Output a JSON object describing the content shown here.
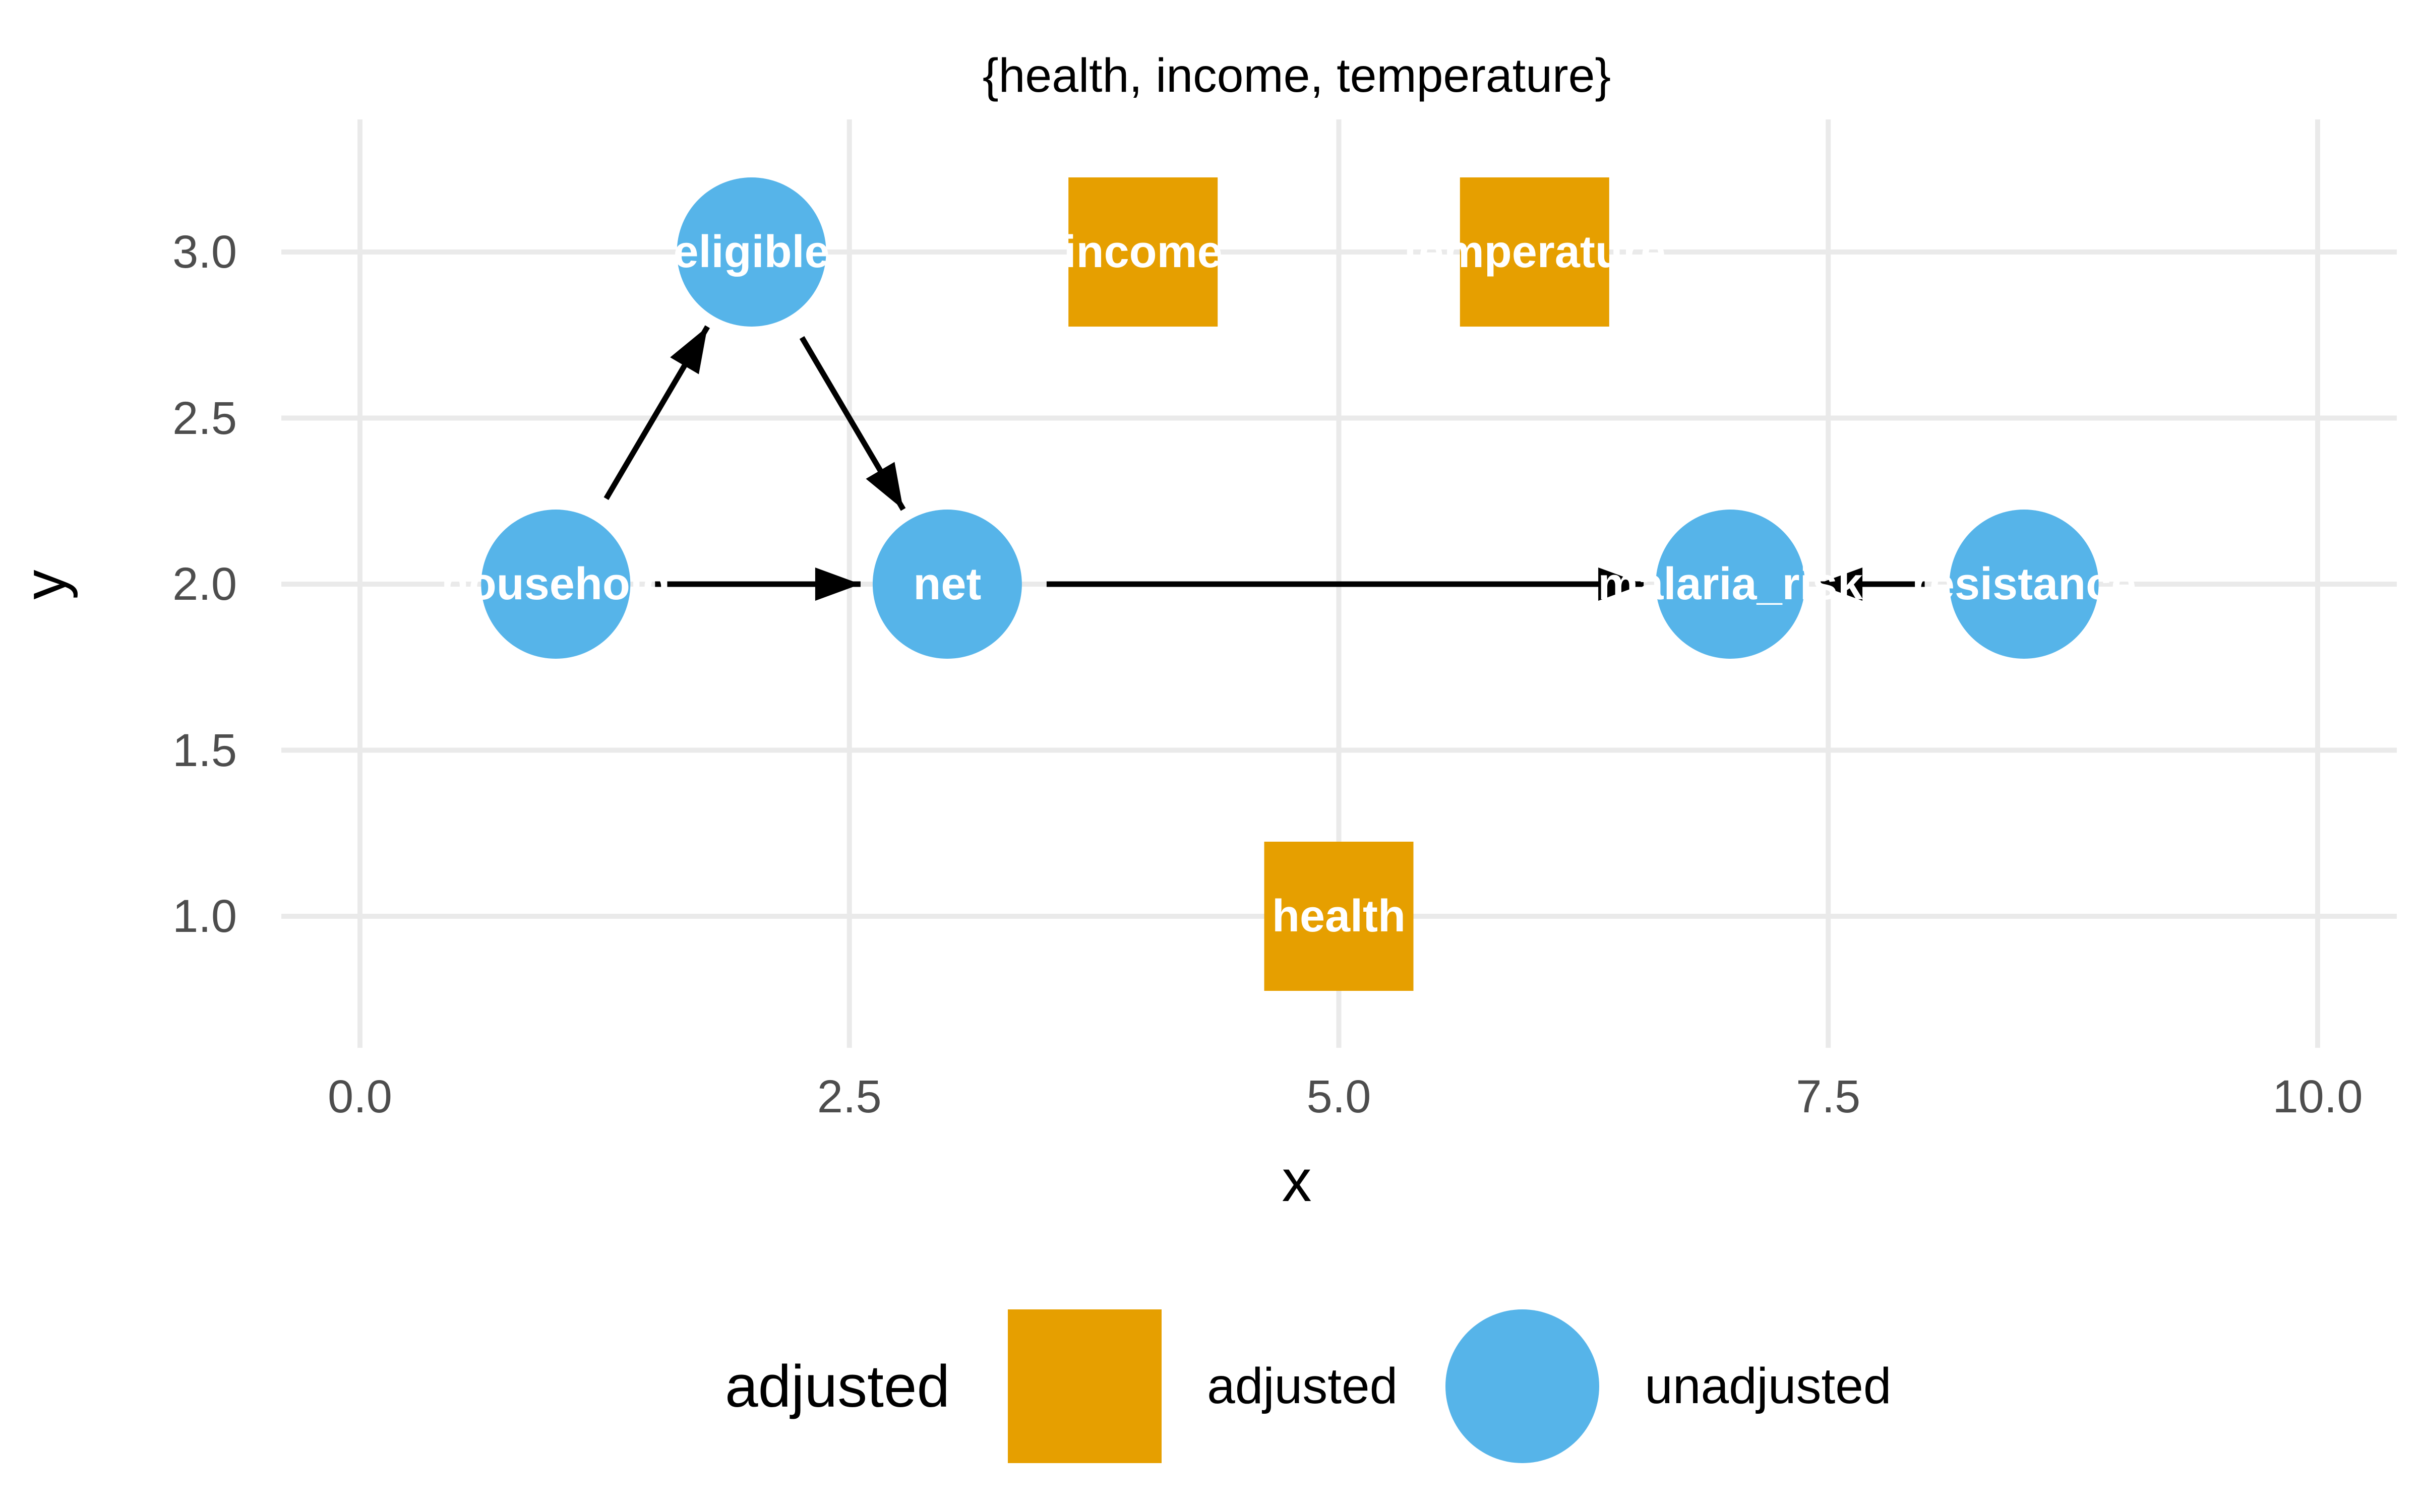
{
  "title": "{health, income, temperature}",
  "axes": {
    "x": {
      "label": "x",
      "tick_labels": [
        "0.0",
        "2.5",
        "5.0",
        "7.5",
        "10.0"
      ],
      "tick_values": [
        0,
        2.5,
        5,
        7.5,
        10
      ]
    },
    "y": {
      "label": "y",
      "tick_labels": [
        "1.0",
        "1.5",
        "2.0",
        "2.5",
        "3.0"
      ],
      "tick_values": [
        1,
        1.5,
        2,
        2.5,
        3
      ]
    }
  },
  "legend": {
    "title": "adjusted",
    "items": [
      {
        "label": "adjusted",
        "shape": "square",
        "color": "#E69F00"
      },
      {
        "label": "unadjusted",
        "shape": "circle",
        "color": "#56B4E9"
      }
    ]
  },
  "colors": {
    "adjusted": "#E69F00",
    "unadjusted": "#56B4E9",
    "edge": "#000000",
    "grid": "#EAEAEA",
    "tick_text": "#4D4D4D",
    "node_label": "#FFFFFF"
  },
  "chart_data": {
    "type": "dag",
    "title": "{health, income, temperature}",
    "xlabel": "x",
    "ylabel": "y",
    "xlim": [
      -0.4,
      10.4
    ],
    "ylim": [
      0.6,
      3.4
    ],
    "grid": true,
    "legend_position": "bottom",
    "x_ticks": {
      "values": [
        0,
        2.5,
        5,
        7.5,
        10
      ],
      "labels": [
        "0.0",
        "2.5",
        "5.0",
        "7.5",
        "10.0"
      ]
    },
    "y_ticks": {
      "values": [
        1,
        1.5,
        2,
        2.5,
        3
      ],
      "labels": [
        "1.0",
        "1.5",
        "2.0",
        "2.5",
        "3.0"
      ]
    },
    "status_colors": {
      "adjusted": "#E69F00",
      "unadjusted": "#56B4E9"
    },
    "nodes": [
      {
        "name": "household",
        "x": 1,
        "y": 2,
        "shape": "circle",
        "status": "unadjusted"
      },
      {
        "name": "eligible",
        "x": 2,
        "y": 3,
        "shape": "circle",
        "status": "unadjusted"
      },
      {
        "name": "net",
        "x": 3,
        "y": 2,
        "shape": "circle",
        "status": "unadjusted"
      },
      {
        "name": "income",
        "x": 4,
        "y": 3,
        "shape": "square",
        "status": "adjusted"
      },
      {
        "name": "health",
        "x": 5,
        "y": 1,
        "shape": "square",
        "status": "adjusted"
      },
      {
        "name": "temperature",
        "x": 6,
        "y": 3,
        "shape": "square",
        "status": "adjusted"
      },
      {
        "name": "malaria_risk",
        "x": 7,
        "y": 2,
        "shape": "circle",
        "status": "unadjusted"
      },
      {
        "name": "resistance",
        "x": 8.5,
        "y": 2,
        "shape": "circle",
        "status": "unadjusted"
      }
    ],
    "edges": [
      {
        "from": "household",
        "to": "eligible"
      },
      {
        "from": "household",
        "to": "net"
      },
      {
        "from": "eligible",
        "to": "net"
      },
      {
        "from": "net",
        "to": "malaria_risk"
      },
      {
        "from": "resistance",
        "to": "malaria_risk"
      }
    ]
  }
}
